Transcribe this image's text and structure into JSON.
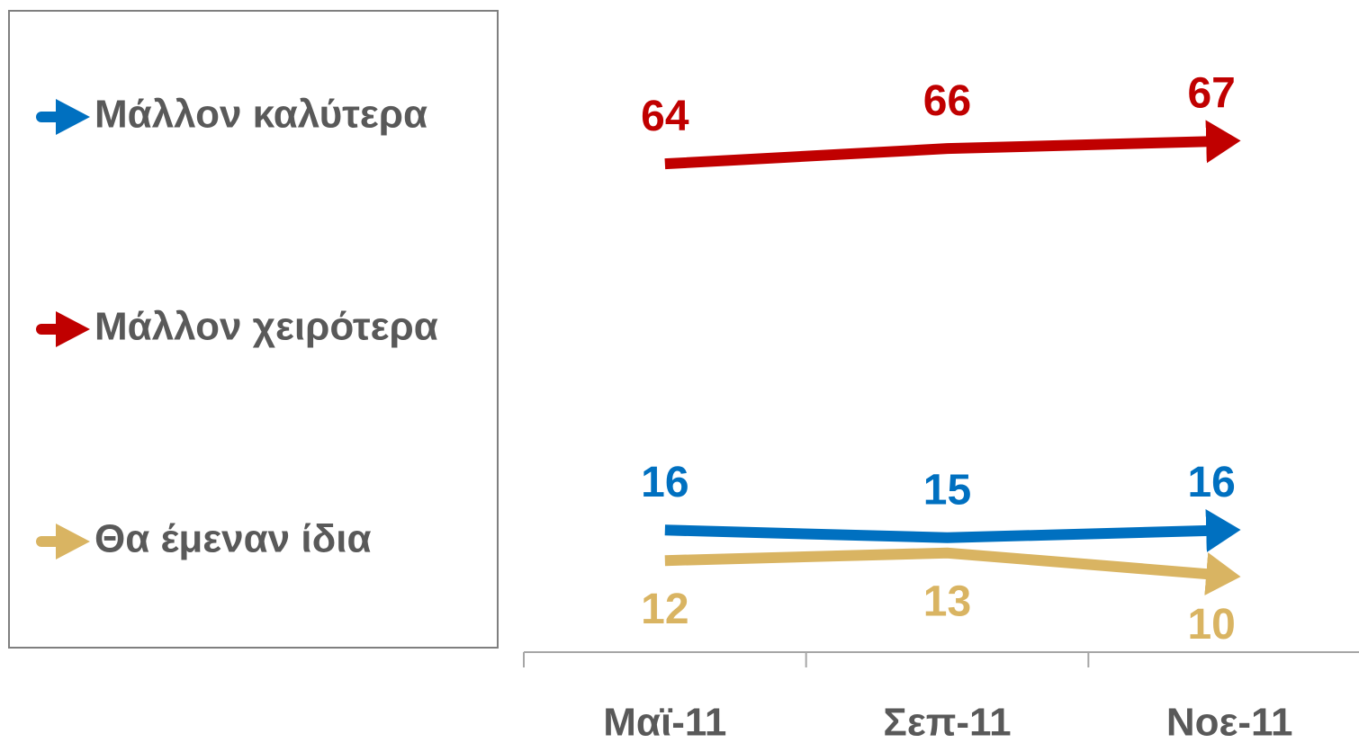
{
  "chart_data": {
    "type": "line",
    "categories": [
      "Μαϊ-11",
      "Σεπ-11",
      "Νοε-11"
    ],
    "series": [
      {
        "name": "Μάλλον καλύτερα",
        "color": "#0070c0",
        "values": [
          16,
          15,
          16
        ]
      },
      {
        "name": "Μάλλον χειρότερα",
        "color": "#c00000",
        "values": [
          64,
          66,
          67
        ]
      },
      {
        "name": "Θα έμεναν ίδια",
        "color": "#d9b462",
        "values": [
          12,
          13,
          10
        ]
      }
    ],
    "ylim": [
      0,
      85
    ],
    "legend": "left"
  }
}
